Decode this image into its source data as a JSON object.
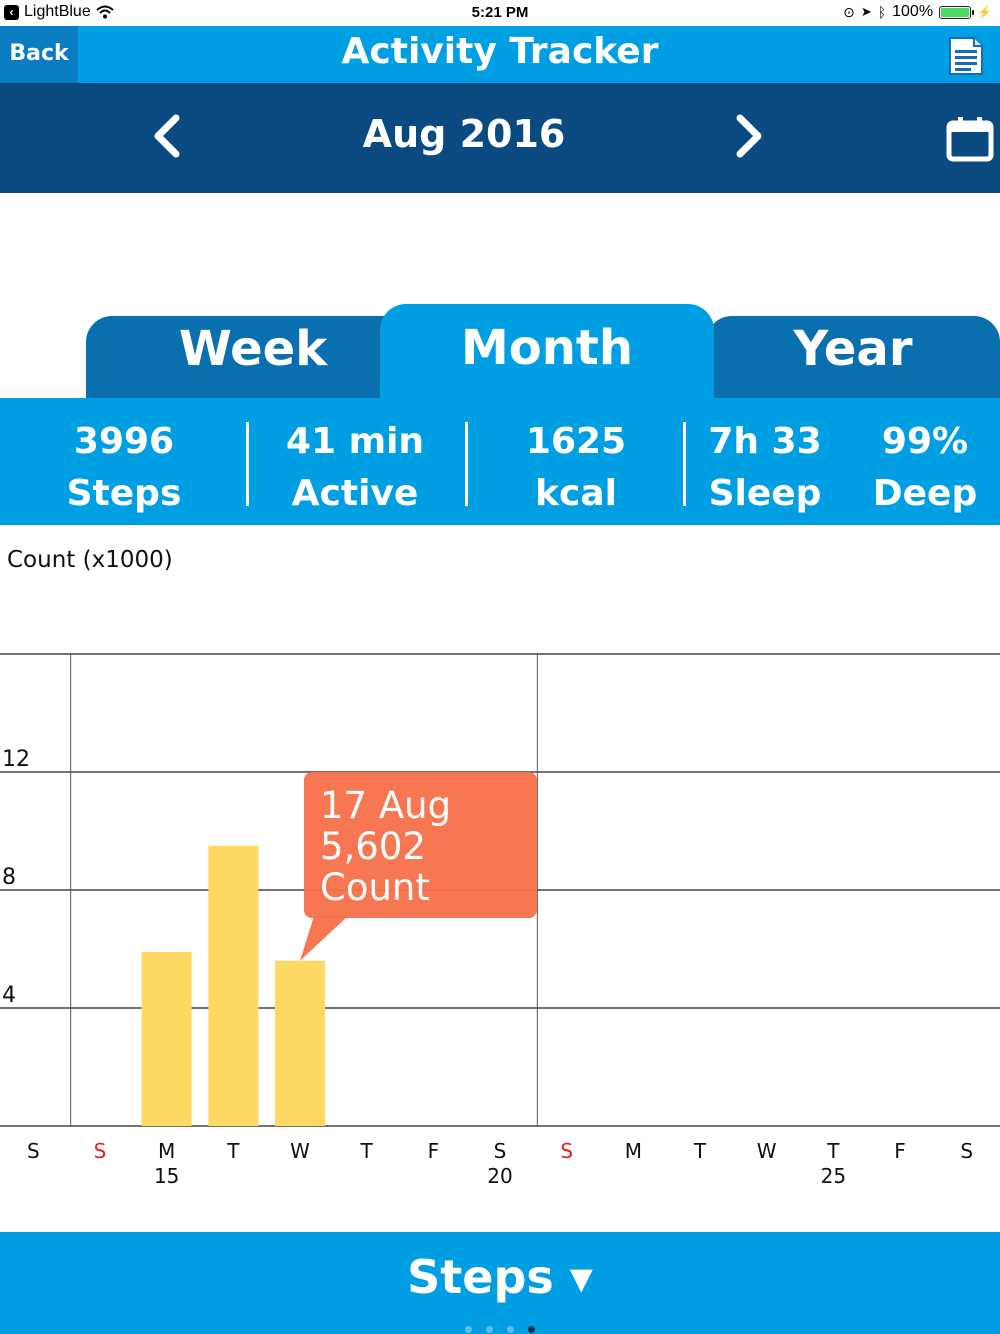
{
  "status_bar": {
    "carrier": "LightBlue",
    "time": "5:21 PM",
    "battery": "100%"
  },
  "header": {
    "back_label": "Back",
    "title": "Activity Tracker"
  },
  "month_nav": {
    "label": "Aug 2016"
  },
  "tabs": [
    {
      "label": "Week",
      "active": false
    },
    {
      "label": "Month",
      "active": true
    },
    {
      "label": "Year",
      "active": false
    }
  ],
  "summary": [
    {
      "value": "3996",
      "unit": "Steps"
    },
    {
      "value": "41 min",
      "unit": "Active"
    },
    {
      "value": "1625",
      "unit": "kcal"
    },
    {
      "value": "7h 33",
      "unit": "Sleep"
    },
    {
      "value": "99%",
      "unit": "Deep"
    }
  ],
  "chart_data": {
    "type": "bar",
    "ylabel": "Count (x1000)",
    "yticks": [
      "12",
      "8",
      "4"
    ],
    "ylim": [
      0,
      16
    ],
    "day_labels": [
      "S",
      "S",
      "M",
      "T",
      "W",
      "T",
      "F",
      "S",
      "S",
      "M",
      "T",
      "W",
      "T",
      "F",
      "S"
    ],
    "date_labels": [
      "",
      "",
      "15",
      "",
      "",
      "",
      "",
      "20",
      "",
      "",
      "",
      "",
      "25",
      "",
      ""
    ],
    "weekend_red": [
      1,
      8
    ],
    "values": [
      0,
      0,
      5.9,
      9.5,
      5.602,
      0,
      0,
      0,
      0,
      0,
      0,
      0,
      0,
      0,
      0
    ],
    "bar_color": "#fdd964",
    "tooltip": {
      "lines": [
        "17 Aug",
        "5,602",
        "Count"
      ],
      "color": "#f7704a",
      "index": 4
    }
  },
  "footer": {
    "metric_label": "Steps ▾",
    "page_count": 4,
    "active_page": 3
  },
  "colors": {
    "header_blue": "#009fe3",
    "dark_blue": "#0a4a80"
  }
}
